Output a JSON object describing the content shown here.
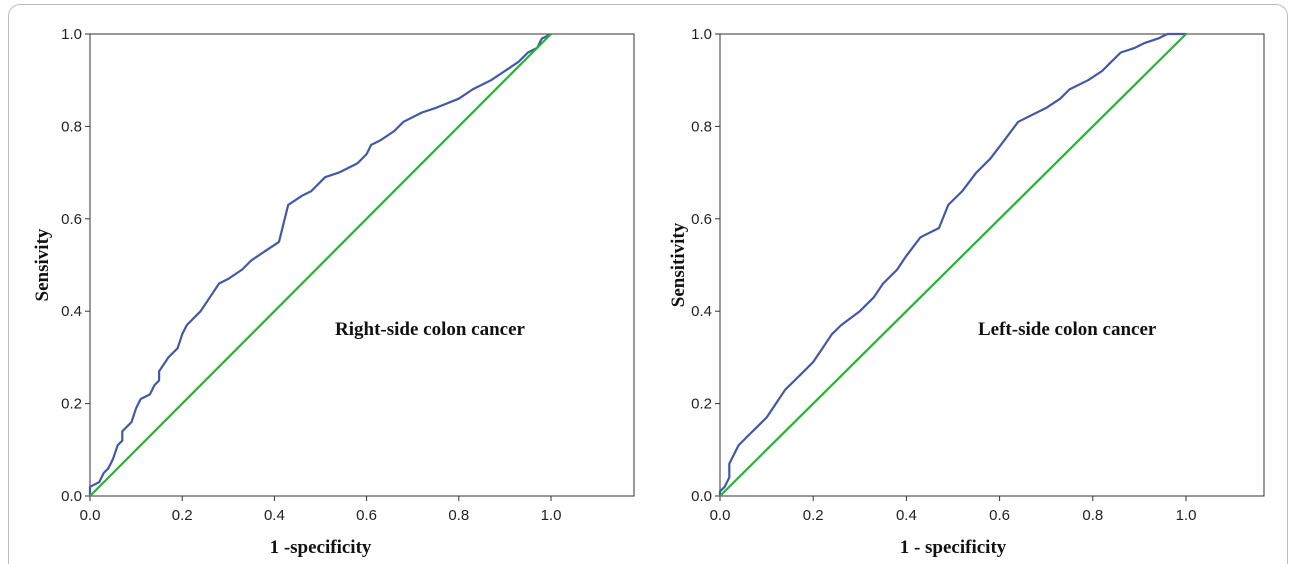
{
  "chart_data": [
    {
      "type": "line",
      "title": "",
      "annotation": "Right-side colon cancer",
      "xlabel": "1 -specificity",
      "ylabel": "Sensivity",
      "xlim": [
        0,
        1.18
      ],
      "ylim": [
        0,
        1.0
      ],
      "xticks": [
        "0.0",
        "0.2",
        "0.4",
        "0.6",
        "0.8",
        "1.0"
      ],
      "yticks": [
        "0.0",
        "0.2",
        "0.4",
        "0.6",
        "0.8",
        "1.0"
      ],
      "grid": false,
      "series": [
        {
          "color": "#4358a8",
          "points": [
            [
              0,
              0
            ],
            [
              0.0,
              0.02
            ],
            [
              0.02,
              0.03
            ],
            [
              0.03,
              0.05
            ],
            [
              0.04,
              0.06
            ],
            [
              0.05,
              0.08
            ],
            [
              0.06,
              0.11
            ],
            [
              0.07,
              0.12
            ],
            [
              0.07,
              0.14
            ],
            [
              0.09,
              0.16
            ],
            [
              0.1,
              0.19
            ],
            [
              0.11,
              0.21
            ],
            [
              0.13,
              0.22
            ],
            [
              0.14,
              0.24
            ],
            [
              0.15,
              0.25
            ],
            [
              0.15,
              0.27
            ],
            [
              0.17,
              0.3
            ],
            [
              0.19,
              0.32
            ],
            [
              0.2,
              0.35
            ],
            [
              0.21,
              0.37
            ],
            [
              0.23,
              0.39
            ],
            [
              0.24,
              0.4
            ],
            [
              0.26,
              0.43
            ],
            [
              0.28,
              0.46
            ],
            [
              0.3,
              0.47
            ],
            [
              0.33,
              0.49
            ],
            [
              0.35,
              0.51
            ],
            [
              0.38,
              0.53
            ],
            [
              0.41,
              0.55
            ],
            [
              0.43,
              0.63
            ],
            [
              0.46,
              0.65
            ],
            [
              0.48,
              0.66
            ],
            [
              0.51,
              0.69
            ],
            [
              0.54,
              0.7
            ],
            [
              0.58,
              0.72
            ],
            [
              0.6,
              0.74
            ],
            [
              0.61,
              0.76
            ],
            [
              0.63,
              0.77
            ],
            [
              0.66,
              0.79
            ],
            [
              0.68,
              0.81
            ],
            [
              0.72,
              0.83
            ],
            [
              0.75,
              0.84
            ],
            [
              0.8,
              0.86
            ],
            [
              0.83,
              0.88
            ],
            [
              0.87,
              0.9
            ],
            [
              0.9,
              0.92
            ],
            [
              0.93,
              0.94
            ],
            [
              0.95,
              0.96
            ],
            [
              0.97,
              0.97
            ],
            [
              0.98,
              0.99
            ],
            [
              0.99,
              0.995
            ],
            [
              1.0,
              1.0
            ]
          ]
        },
        {
          "color": "#22b533",
          "points": [
            [
              0,
              0
            ],
            [
              1,
              1
            ]
          ]
        }
      ]
    },
    {
      "type": "line",
      "title": "",
      "annotation": "Left-side colon cancer",
      "xlabel": "1 - specificity",
      "ylabel": "Sensitivity",
      "xlim": [
        0,
        1.18
      ],
      "ylim": [
        0,
        1.0
      ],
      "xticks": [
        "0.0",
        "0.2",
        "0.4",
        "0.6",
        "0.8",
        "1.0"
      ],
      "yticks": [
        "0.0",
        "0.2",
        "0.4",
        "0.6",
        "0.8",
        "1.0"
      ],
      "grid": false,
      "series": [
        {
          "color": "#4358a8",
          "points": [
            [
              0,
              0
            ],
            [
              0.0,
              0.01
            ],
            [
              0.01,
              0.02
            ],
            [
              0.02,
              0.04
            ],
            [
              0.02,
              0.07
            ],
            [
              0.03,
              0.09
            ],
            [
              0.04,
              0.11
            ],
            [
              0.05,
              0.12
            ],
            [
              0.06,
              0.13
            ],
            [
              0.08,
              0.15
            ],
            [
              0.1,
              0.17
            ],
            [
              0.12,
              0.2
            ],
            [
              0.14,
              0.23
            ],
            [
              0.16,
              0.25
            ],
            [
              0.18,
              0.27
            ],
            [
              0.2,
              0.29
            ],
            [
              0.22,
              0.32
            ],
            [
              0.24,
              0.35
            ],
            [
              0.26,
              0.37
            ],
            [
              0.3,
              0.4
            ],
            [
              0.33,
              0.43
            ],
            [
              0.35,
              0.46
            ],
            [
              0.38,
              0.49
            ],
            [
              0.4,
              0.52
            ],
            [
              0.43,
              0.56
            ],
            [
              0.47,
              0.58
            ],
            [
              0.49,
              0.63
            ],
            [
              0.52,
              0.66
            ],
            [
              0.55,
              0.7
            ],
            [
              0.58,
              0.73
            ],
            [
              0.61,
              0.77
            ],
            [
              0.64,
              0.81
            ],
            [
              0.7,
              0.84
            ],
            [
              0.73,
              0.86
            ],
            [
              0.75,
              0.88
            ],
            [
              0.79,
              0.9
            ],
            [
              0.82,
              0.92
            ],
            [
              0.84,
              0.94
            ],
            [
              0.86,
              0.96
            ],
            [
              0.89,
              0.97
            ],
            [
              0.91,
              0.98
            ],
            [
              0.94,
              0.99
            ],
            [
              0.96,
              1.0
            ],
            [
              1.0,
              1.0
            ]
          ]
        },
        {
          "color": "#22b533",
          "points": [
            [
              0,
              0
            ],
            [
              1,
              1
            ]
          ]
        }
      ]
    }
  ]
}
